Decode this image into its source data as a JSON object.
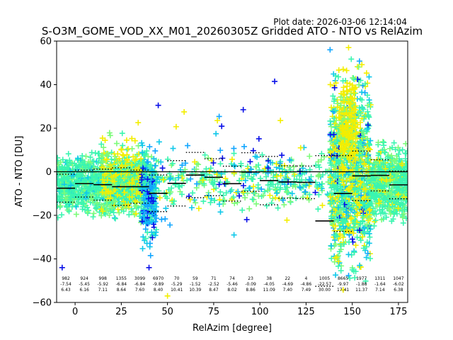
{
  "chart_data": {
    "type": "scatter",
    "plot_date": "Plot date: 2026-03-06 12:14:04",
    "title": "S-O3M_GOME_VOD_XX_M01_20260305Z Gridded ATO - NTO vs RelAzim",
    "xlabel": "RelAzim [degree]",
    "ylabel": "ATO - NTO [DU]",
    "xlim": [
      -10,
      180
    ],
    "ylim": [
      -60,
      60
    ],
    "xticks": [
      {
        "value": 0,
        "label": "0"
      },
      {
        "value": 25,
        "label": "25"
      },
      {
        "value": 50,
        "label": "50"
      },
      {
        "value": 75,
        "label": "75"
      },
      {
        "value": 100,
        "label": "100"
      },
      {
        "value": 125,
        "label": "125"
      },
      {
        "value": 150,
        "label": "150"
      },
      {
        "value": 175,
        "label": "175"
      }
    ],
    "yticks": [
      {
        "value": -60,
        "label": "−60"
      },
      {
        "value": -40,
        "label": "−40"
      },
      {
        "value": -20,
        "label": "−20"
      },
      {
        "value": 0,
        "label": "0"
      },
      {
        "value": 20,
        "label": "20"
      },
      {
        "value": 40,
        "label": "40"
      },
      {
        "value": 60,
        "label": "60"
      }
    ],
    "zero_line": 0,
    "colors": {
      "dense": "#3af5b0",
      "mid": "#7dfb7a",
      "yellow": "#f3ee00",
      "cyan": "#10c8ea",
      "sky": "#12a6ff",
      "blue": "#0a10e8",
      "navy": "#0008c0",
      "mean_line": "#000000",
      "std_line": "#000000"
    },
    "clusters": [
      {
        "xmin": -10,
        "xmax": 44,
        "ymin": -24,
        "ymax": 12,
        "count": 1300,
        "weights": {
          "dense": 0.72,
          "mid": 0.2,
          "cyan": 0.08
        }
      },
      {
        "xmin": 14,
        "xmax": 36,
        "ymin": -28,
        "ymax": 24,
        "count": 220,
        "weights": {
          "yellow": 0.55,
          "mid": 0.3,
          "dense": 0.15
        }
      },
      {
        "xmin": 36,
        "xmax": 44,
        "ymin": -46,
        "ymax": 18,
        "count": 170,
        "weights": {
          "cyan": 0.35,
          "sky": 0.3,
          "blue": 0.2,
          "dense": 0.15
        }
      },
      {
        "xmin": 44,
        "xmax": 138,
        "ymin": -22,
        "ymax": 12,
        "count": 330,
        "weights": {
          "dense": 0.5,
          "mid": 0.3,
          "yellow": 0.1,
          "cyan": 0.1
        }
      },
      {
        "xmin": 44,
        "xmax": 128,
        "ymin": -30,
        "ymax": 30,
        "count": 70,
        "weights": {
          "sky": 0.35,
          "blue": 0.3,
          "cyan": 0.2,
          "yellow": 0.15
        }
      },
      {
        "xmin": 138,
        "xmax": 160,
        "ymin": -60,
        "ymax": 57,
        "count": 1150,
        "weights": {
          "dense": 0.4,
          "yellow": 0.3,
          "mid": 0.12,
          "cyan": 0.1,
          "sky": 0.05,
          "blue": 0.03
        }
      },
      {
        "xmin": 143,
        "xmax": 152,
        "ymin": -10,
        "ymax": 50,
        "count": 220,
        "weights": {
          "yellow": 0.8,
          "mid": 0.2
        }
      },
      {
        "xmin": 160,
        "xmax": 180,
        "ymin": -28,
        "ymax": 18,
        "count": 600,
        "weights": {
          "dense": 0.72,
          "mid": 0.18,
          "yellow": 0.1
        }
      }
    ],
    "outliers": [
      {
        "x": -7,
        "y": -44,
        "c": "blue"
      },
      {
        "x": 45,
        "y": 30.5,
        "c": "blue"
      },
      {
        "x": 108,
        "y": 41.5,
        "c": "blue"
      },
      {
        "x": 91,
        "y": 28.5,
        "c": "blue"
      },
      {
        "x": 59,
        "y": 27.5,
        "c": "yellow"
      },
      {
        "x": 77,
        "y": 23.5,
        "c": "yellow"
      },
      {
        "x": 138,
        "y": 56,
        "c": "sky"
      },
      {
        "x": 148,
        "y": 57,
        "c": "yellow"
      },
      {
        "x": 50,
        "y": -57,
        "c": "yellow"
      },
      {
        "x": 86,
        "y": -29,
        "c": "cyan"
      },
      {
        "x": 130,
        "y": -9.5,
        "c": "blue"
      },
      {
        "x": 40,
        "y": -44,
        "c": "blue"
      },
      {
        "x": 154,
        "y": -43,
        "c": "cyan"
      },
      {
        "x": 148,
        "y": -38,
        "c": "cyan"
      }
    ],
    "bins": [
      {
        "xmin": -10,
        "xmax": 0,
        "n": "982",
        "mean": "-7.54",
        "std": "6.43"
      },
      {
        "xmin": 0,
        "xmax": 10,
        "n": "924",
        "mean": "-5.45",
        "std": "6.16"
      },
      {
        "xmin": 10,
        "xmax": 20,
        "n": "998",
        "mean": "-5.92",
        "std": "7.11"
      },
      {
        "xmin": 20,
        "xmax": 30,
        "n": "1355",
        "mean": "-6.84",
        "std": "8.64"
      },
      {
        "xmin": 30,
        "xmax": 40,
        "n": "3099",
        "mean": "-6.84",
        "std": "7.60"
      },
      {
        "xmin": 40,
        "xmax": 50,
        "n": "6970",
        "mean": "-9.89",
        "std": "8.40"
      },
      {
        "xmin": 50,
        "xmax": 60,
        "n": "70",
        "mean": "-5.29",
        "std": "10.41"
      },
      {
        "xmin": 60,
        "xmax": 70,
        "n": "59",
        "mean": "-1.52",
        "std": "10.39"
      },
      {
        "xmin": 70,
        "xmax": 80,
        "n": "71",
        "mean": "-2.52",
        "std": "8.47"
      },
      {
        "xmin": 80,
        "xmax": 90,
        "n": "74",
        "mean": "-5.46",
        "std": "8.02"
      },
      {
        "xmin": 90,
        "xmax": 100,
        "n": "23",
        "mean": "-0.09",
        "std": "8.86"
      },
      {
        "xmin": 100,
        "xmax": 110,
        "n": "38",
        "mean": "-4.05",
        "std": "11.09"
      },
      {
        "xmin": 110,
        "xmax": 120,
        "n": "22",
        "mean": "-4.69",
        "std": "7.40"
      },
      {
        "xmin": 120,
        "xmax": 130,
        "n": "4",
        "mean": "-4.86",
        "std": "7.49"
      },
      {
        "xmin": 130,
        "xmax": 140,
        "n": "1005",
        "mean": "-22.57",
        "std": "30.00"
      },
      {
        "xmin": 140,
        "xmax": 150,
        "n": "8665",
        "mean": "-9.97",
        "std": "17.41"
      },
      {
        "xmin": 150,
        "xmax": 160,
        "n": "1977",
        "mean": "-1.88",
        "std": "11.37"
      },
      {
        "xmin": 160,
        "xmax": 170,
        "n": "1311",
        "mean": "-1.64",
        "std": "7.14"
      },
      {
        "xmin": 170,
        "xmax": 180,
        "n": "1047",
        "mean": "-6.02",
        "std": "6.38"
      }
    ]
  }
}
